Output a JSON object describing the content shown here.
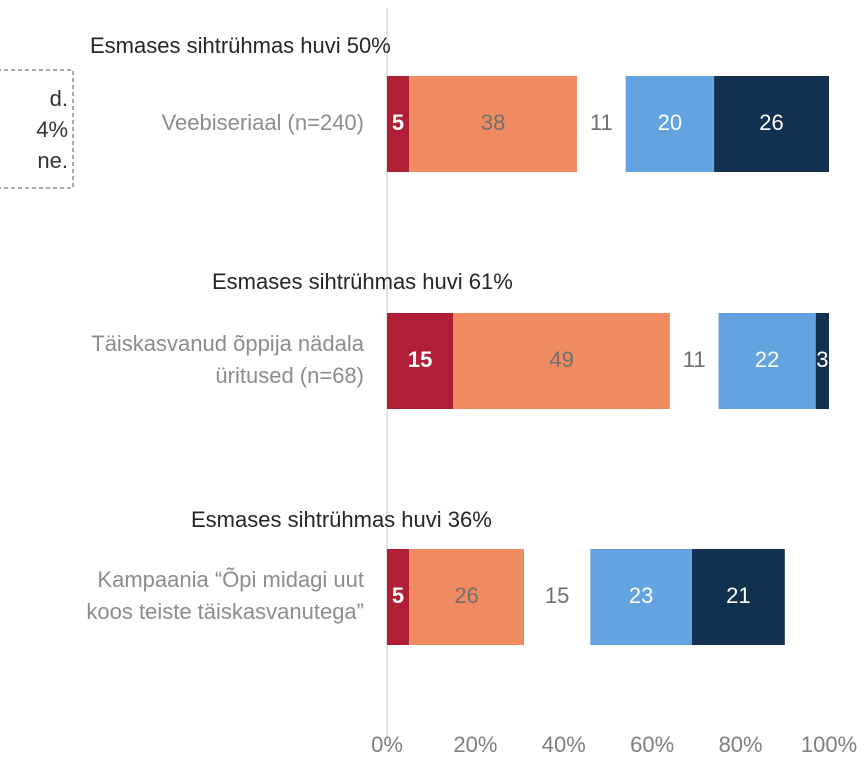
{
  "chart_data": {
    "type": "stacked-bar-horizontal",
    "annotation": [
      "d.",
      "4%",
      "ne."
    ],
    "group_titles": [
      "Esmases sihtrühmas huvi 50%",
      "Esmases sihtrühmas huvi 61%",
      "Esmases sihtrühmas huvi  36%"
    ],
    "categories": [
      [
        "Veebiseriaal (n=240)"
      ],
      [
        "Täiskasvanud õppija nädala",
        "üritused (n=68)"
      ],
      [
        "Kampaania “Õpi midagi uut",
        "koos teiste täiskasvanutega”"
      ]
    ],
    "series": [
      {
        "color": "#b01f35",
        "values": [
          5,
          15,
          5
        ]
      },
      {
        "color": "#f08b61",
        "values": [
          38,
          49,
          26
        ]
      },
      {
        "color": "none",
        "values": [
          11,
          11,
          15
        ]
      },
      {
        "color": "#62a3e0",
        "values": [
          20,
          22,
          23
        ]
      },
      {
        "color": "#12314f",
        "values": [
          26,
          3,
          21
        ]
      }
    ],
    "xlim": [
      0,
      100
    ],
    "xticks": [
      {
        "value": 0,
        "label": "0%"
      },
      {
        "value": 20,
        "label": "20%"
      },
      {
        "value": 40,
        "label": "40%"
      },
      {
        "value": 60,
        "label": "60%"
      },
      {
        "value": 80,
        "label": "80%"
      },
      {
        "value": 100,
        "label": "100%"
      }
    ]
  }
}
